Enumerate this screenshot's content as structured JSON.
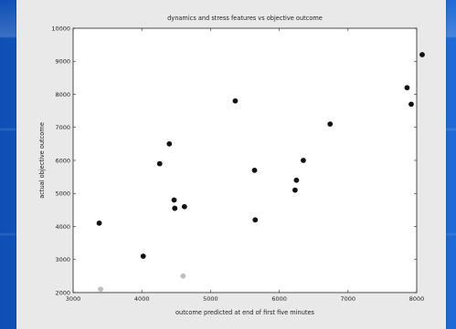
{
  "chart_data": {
    "type": "scatter",
    "title": "dynamics and stress features vs objective outcome",
    "xlabel": "outcome predicted at end of first five minutes",
    "ylabel": "actual objective outcome",
    "xlim": [
      3000,
      8000
    ],
    "ylim": [
      2000,
      10000
    ],
    "x_ticks": [
      "3000",
      "4000",
      "5000",
      "6000",
      "7000",
      "8000"
    ],
    "y_ticks": [
      "2000",
      "3000",
      "4000",
      "5000",
      "6000",
      "7000",
      "8000",
      "9000",
      "10000"
    ],
    "grid": false,
    "legend": "none",
    "series": [
      {
        "color": "#111111",
        "points": [
          {
            "x": 3380,
            "y": 4100
          },
          {
            "x": 4020,
            "y": 3100
          },
          {
            "x": 4260,
            "y": 5900
          },
          {
            "x": 4400,
            "y": 6500
          },
          {
            "x": 4470,
            "y": 4800
          },
          {
            "x": 4480,
            "y": 4550
          },
          {
            "x": 4620,
            "y": 4600
          },
          {
            "x": 5360,
            "y": 7800
          },
          {
            "x": 5640,
            "y": 5700
          },
          {
            "x": 5650,
            "y": 4200
          },
          {
            "x": 6230,
            "y": 5100
          },
          {
            "x": 6250,
            "y": 5400
          },
          {
            "x": 6350,
            "y": 6000
          },
          {
            "x": 6740,
            "y": 7100
          },
          {
            "x": 7860,
            "y": 8200
          },
          {
            "x": 7920,
            "y": 7700
          },
          {
            "x": 8080,
            "y": 9200
          }
        ]
      },
      {
        "color": "#bdbdbd",
        "points": [
          {
            "x": 3400,
            "y": 2100
          },
          {
            "x": 4600,
            "y": 2500
          }
        ]
      }
    ]
  }
}
